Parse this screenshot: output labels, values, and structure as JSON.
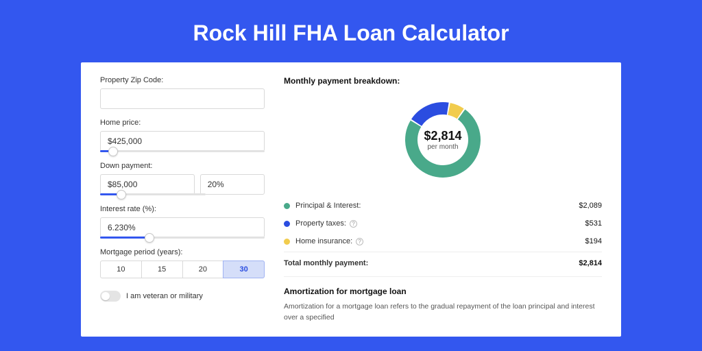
{
  "page": {
    "title": "Rock Hill FHA Loan Calculator",
    "bg_color": "#3357ef",
    "card_bg": "#ffffff"
  },
  "form": {
    "zip": {
      "label": "Property Zip Code:",
      "value": ""
    },
    "home_price": {
      "label": "Home price:",
      "value": "$425,000",
      "slider_pct": 8
    },
    "down_payment": {
      "label": "Down payment:",
      "amount_value": "$85,000",
      "pct_value": "20%",
      "slider_pct": 20
    },
    "interest_rate": {
      "label": "Interest rate (%):",
      "value": "6.230%",
      "slider_pct": 30
    },
    "mortgage_period": {
      "label": "Mortgage period (years):",
      "options": [
        "10",
        "15",
        "20",
        "30"
      ],
      "selected_index": 3
    },
    "veteran": {
      "label": "I am veteran or military",
      "checked": false
    }
  },
  "breakdown": {
    "title": "Monthly payment breakdown:",
    "center_amount": "$2,814",
    "center_sub": "per month",
    "slices": [
      {
        "name": "principal_interest",
        "label": "Principal & Interest:",
        "value": "$2,089",
        "pct": 74.2,
        "color": "#49a98a",
        "has_info": false
      },
      {
        "name": "property_taxes",
        "label": "Property taxes:",
        "value": "$531",
        "pct": 18.9,
        "color": "#2b4de0",
        "has_info": true
      },
      {
        "name": "home_insurance",
        "label": "Home insurance:",
        "value": "$194",
        "pct": 6.9,
        "color": "#f1cc4d",
        "has_info": true
      }
    ],
    "total_label": "Total monthly payment:",
    "total_value": "$2,814",
    "donut": {
      "thickness": 18,
      "radius": 55,
      "start_angle_deg": -55
    }
  },
  "amortization": {
    "title": "Amortization for mortgage loan",
    "text": "Amortization for a mortgage loan refers to the gradual repayment of the loan principal and interest over a specified"
  }
}
